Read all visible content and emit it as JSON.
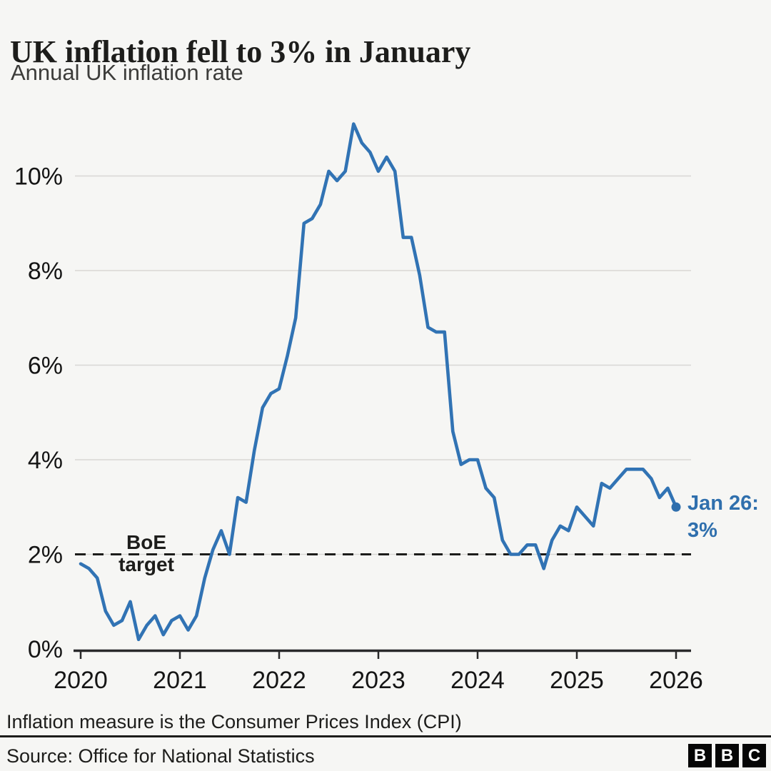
{
  "chart_data": {
    "type": "line",
    "title": "UK inflation fell to 3% in January",
    "subtitle": "Annual UK inflation rate",
    "unit": "%",
    "frequency": "monthly",
    "x_start": "2020-01",
    "x_end": "2026-01",
    "xlabel": "",
    "ylabel": "",
    "ylim": [
      0,
      11.5
    ],
    "grid": "horizontal-light",
    "series": [
      {
        "name": "Annual UK inflation rate (CPI, 12-month %)",
        "color": "#3173b4",
        "values": [
          1.8,
          1.7,
          1.5,
          0.8,
          0.5,
          0.6,
          1.0,
          0.2,
          0.5,
          0.7,
          0.3,
          0.6,
          0.7,
          0.4,
          0.7,
          1.5,
          2.1,
          2.5,
          2.0,
          3.2,
          3.1,
          4.2,
          5.1,
          5.4,
          5.5,
          6.2,
          7.0,
          9.0,
          9.1,
          9.4,
          10.1,
          9.9,
          10.1,
          11.1,
          10.7,
          10.5,
          10.1,
          10.4,
          10.1,
          8.7,
          8.7,
          7.9,
          6.8,
          6.7,
          6.7,
          4.6,
          3.9,
          4.0,
          4.0,
          3.4,
          3.2,
          2.3,
          2.0,
          2.0,
          2.2,
          2.2,
          1.7,
          2.3,
          2.6,
          2.5,
          3.0,
          2.8,
          2.6,
          3.5,
          3.4,
          3.6,
          3.8,
          3.8,
          3.8,
          3.6,
          3.2,
          3.4,
          3.0
        ]
      }
    ],
    "x_axis": {
      "ticks": [
        "2020",
        "2021",
        "2022",
        "2023",
        "2024",
        "2025",
        "2026"
      ]
    },
    "y_axis": {
      "ticks": [
        {
          "value": 0,
          "label": "0%"
        },
        {
          "value": 2,
          "label": "2%"
        },
        {
          "value": 4,
          "label": "4%"
        },
        {
          "value": 6,
          "label": "6%"
        },
        {
          "value": 8,
          "label": "8%"
        },
        {
          "value": 10,
          "label": "10%"
        }
      ]
    },
    "target_line": {
      "value": 2,
      "style": "dashed",
      "color": "#1d1d1b",
      "label_line1": "BoE",
      "label_line2": "target"
    },
    "annotation": {
      "line1": "Jan 26:",
      "line2": "3%",
      "color": "#2f6fad",
      "attached_to": "last-point"
    },
    "legend": "none"
  },
  "colors": {
    "background": "#f6f6f4",
    "line": "#3173b4",
    "gridline": "#d8d7d4",
    "axis": "#29292a",
    "text": "#1d1d1b"
  },
  "footer": {
    "note": "Inflation measure is the Consumer Prices Index (CPI)",
    "source": "Source: Office for National Statistics",
    "logo_letters": [
      "B",
      "B",
      "C"
    ]
  }
}
